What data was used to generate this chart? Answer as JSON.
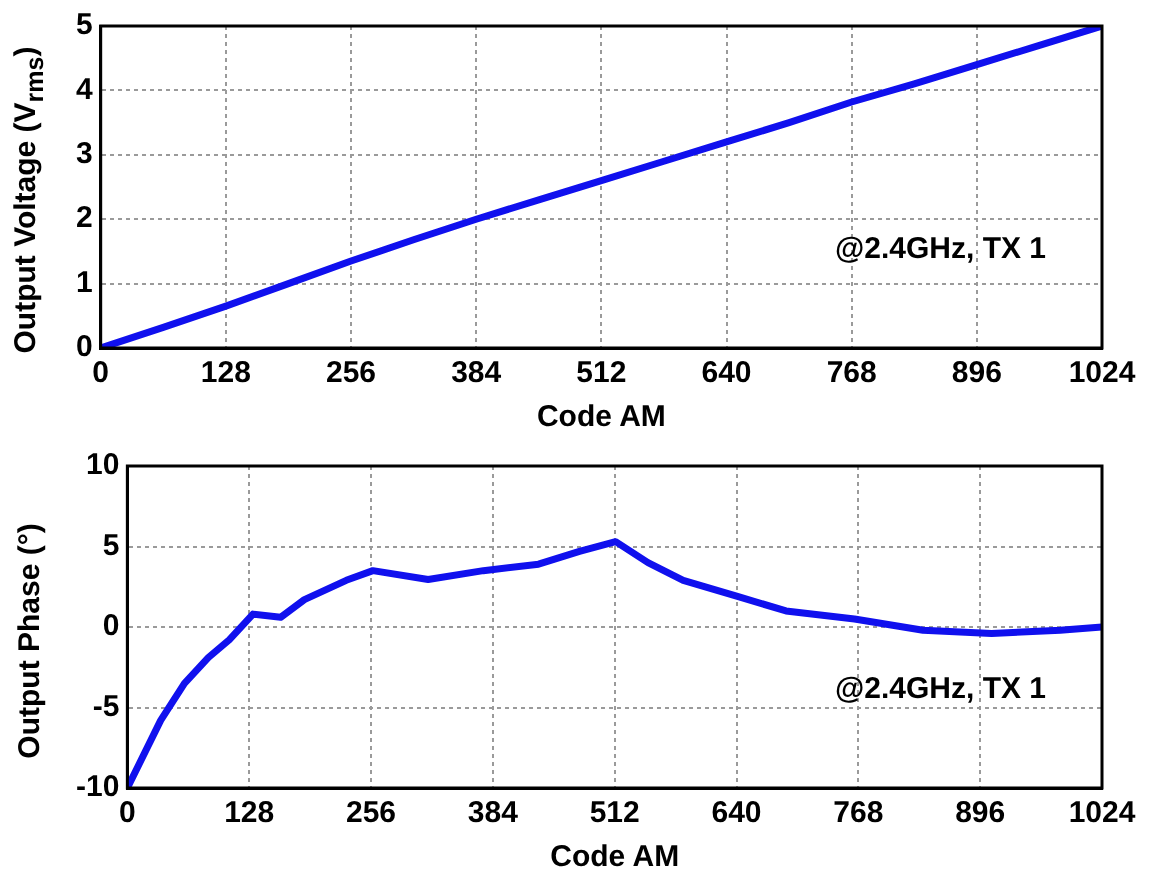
{
  "chart_data": [
    {
      "type": "line",
      "xlabel": "Code AM",
      "ylabel": "Output Voltage (V$_{rms}$)",
      "annotations": [
        "@2.4GHz, TX 1"
      ],
      "grid": true,
      "legend": false,
      "marker": "none",
      "line_style": "solid",
      "x": [
        0,
        64,
        128,
        192,
        256,
        320,
        384,
        448,
        512,
        576,
        640,
        704,
        768,
        832,
        896,
        960,
        1024
      ],
      "series": [
        {
          "color": "#1010ee",
          "values": [
            0,
            0.32,
            0.65,
            1.0,
            1.35,
            1.68,
            2.0,
            2.3,
            2.6,
            2.9,
            3.2,
            3.5,
            3.82,
            4.1,
            4.4,
            4.7,
            5.0
          ]
        }
      ],
      "xlim": [
        0,
        1024
      ],
      "xticks": [
        0,
        128,
        256,
        384,
        512,
        640,
        768,
        896,
        1024
      ],
      "ylim": [
        0,
        5
      ],
      "yticks": [
        0,
        1,
        2,
        3,
        4,
        5
      ]
    },
    {
      "type": "line",
      "xlabel": "Code AM",
      "ylabel": "Output Phase (°)",
      "annotations": [
        "@2.4GHz, TX 1"
      ],
      "grid": true,
      "legend": false,
      "marker": "none",
      "line_style": "solid",
      "x": [
        0,
        35,
        60,
        85,
        107,
        132,
        161,
        186,
        230,
        258,
        316,
        374,
        432,
        475,
        513,
        547,
        584,
        641,
        692,
        764,
        836,
        908,
        980,
        1024
      ],
      "series": [
        {
          "color": "#1010ee",
          "values": [
            -10,
            -5.8,
            -3.5,
            -1.9,
            -0.8,
            0.8,
            0.6,
            1.7,
            2.9,
            3.5,
            2.95,
            3.5,
            3.9,
            4.7,
            5.3,
            4.0,
            2.9,
            1.9,
            1.0,
            0.5,
            -0.2,
            -0.4,
            -0.2,
            0
          ]
        }
      ],
      "xlim": [
        0,
        1024
      ],
      "xticks": [
        0,
        128,
        256,
        384,
        512,
        640,
        768,
        896,
        1024
      ],
      "ylim": [
        -10,
        10
      ],
      "yticks": [
        -10,
        -5,
        0,
        5,
        10
      ]
    }
  ]
}
